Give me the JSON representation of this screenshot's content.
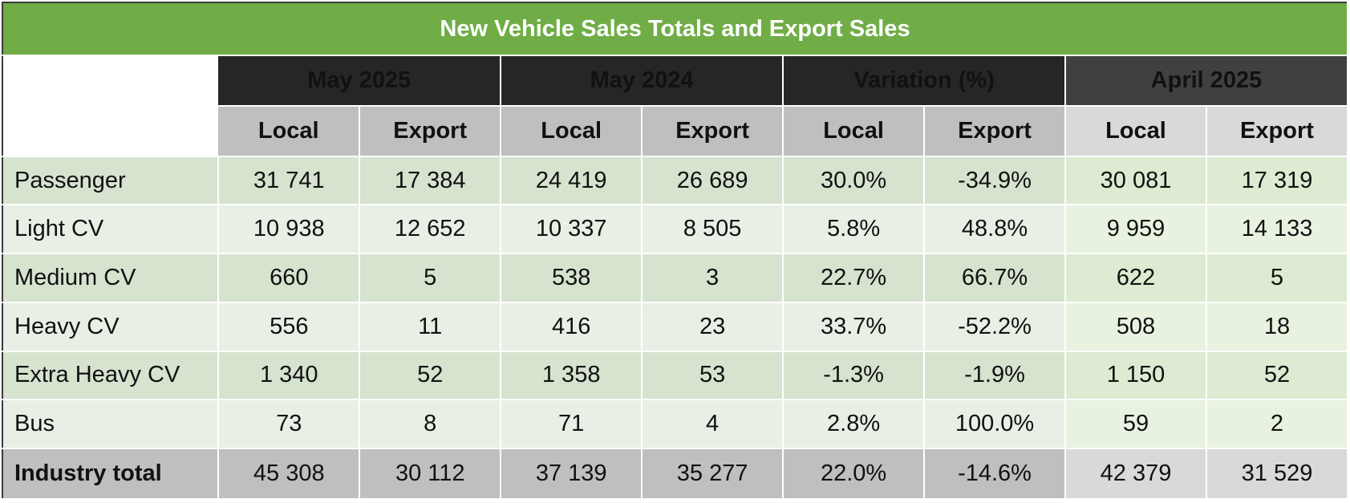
{
  "table": {
    "title": "New Vehicle Sales Totals and Export Sales",
    "groups": [
      {
        "label": "May 2025"
      },
      {
        "label": "May 2024"
      },
      {
        "label": "Variation (%)"
      },
      {
        "label": "April 2025"
      }
    ],
    "subheaders": [
      "Local",
      "Export",
      "Local",
      "Export",
      "Local",
      "Export",
      "Local",
      "Export"
    ],
    "rows": [
      {
        "label": "Passenger",
        "values": [
          "31 741",
          "17 384",
          "24 419",
          "26 689",
          "30.0%",
          "-34.9%",
          "30 081",
          "17 319"
        ]
      },
      {
        "label": "Light CV",
        "values": [
          "10 938",
          "12 652",
          "10 337",
          "8 505",
          "5.8%",
          "48.8%",
          "9 959",
          "14 133"
        ]
      },
      {
        "label": "Medium CV",
        "values": [
          "660",
          "5",
          "538",
          "3",
          "22.7%",
          "66.7%",
          "622",
          "5"
        ]
      },
      {
        "label": "Heavy CV",
        "values": [
          "556",
          "11",
          "416",
          "23",
          "33.7%",
          "-52.2%",
          "508",
          "18"
        ]
      },
      {
        "label": "Extra Heavy CV",
        "values": [
          "1 340",
          "52",
          "1 358",
          "53",
          "-1.3%",
          "-1.9%",
          "1 150",
          "52"
        ]
      },
      {
        "label": "Bus",
        "values": [
          "73",
          "8",
          "71",
          "4",
          "2.8%",
          "100.0%",
          "59",
          "2"
        ]
      }
    ],
    "total": {
      "label": "Industry total",
      "values": [
        "45 308",
        "30 112",
        "37 139",
        "35 277",
        "22.0%",
        "-14.6%",
        "42 379",
        "31 529"
      ]
    }
  },
  "colors": {
    "title_bg": "#70ad47",
    "group_header_bg": "#262626",
    "april_header_bg": "#404040",
    "subheader_bg": "#bfbfbf",
    "row_shade_a": "#d6e3cf",
    "row_shade_b": "#e8efe4"
  }
}
